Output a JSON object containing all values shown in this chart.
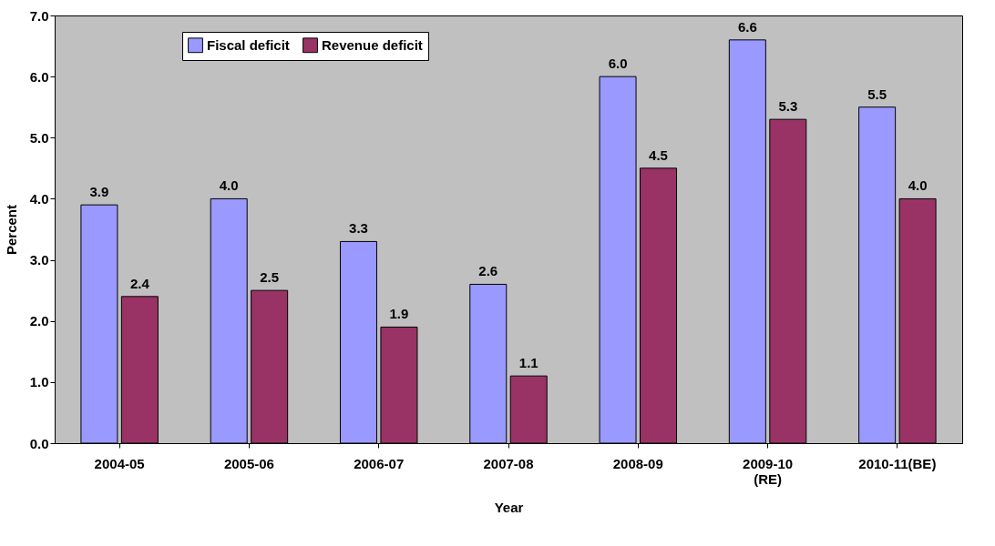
{
  "chart_data": {
    "type": "bar",
    "categories": [
      "2004-05",
      "2005-06",
      "2006-07",
      "2007-08",
      "2008-09",
      "2009-10 (RE)",
      "2010-11(BE)"
    ],
    "series": [
      {
        "name": "Fiscal deficit",
        "color": "#9999ff",
        "values": [
          3.9,
          4.0,
          3.3,
          2.6,
          6.0,
          6.6,
          5.5
        ],
        "value_labels": [
          "3.9",
          "4.0",
          "3.3",
          "2.6",
          "6.0",
          "6.6",
          "5.5"
        ]
      },
      {
        "name": "Revenue deficit",
        "color": "#993366",
        "values": [
          2.4,
          2.5,
          1.9,
          1.1,
          4.5,
          5.3,
          4.0
        ],
        "value_labels": [
          "2.4",
          "2.5",
          "1.9",
          "1.1",
          "4.5",
          "5.3",
          "4.0"
        ]
      }
    ],
    "xlabel": "Year",
    "ylabel": "Percent",
    "ylim": [
      0,
      7
    ],
    "yticks": [
      {
        "value": 0,
        "label": "0.0"
      },
      {
        "value": 1,
        "label": "1.0"
      },
      {
        "value": 2,
        "label": "2.0"
      },
      {
        "value": 3,
        "label": "3.0"
      },
      {
        "value": 4,
        "label": "4.0"
      },
      {
        "value": 5,
        "label": "5.0"
      },
      {
        "value": 6,
        "label": "6.0"
      },
      {
        "value": 7,
        "label": "7.0"
      }
    ],
    "grid": false,
    "legend": "top left"
  }
}
